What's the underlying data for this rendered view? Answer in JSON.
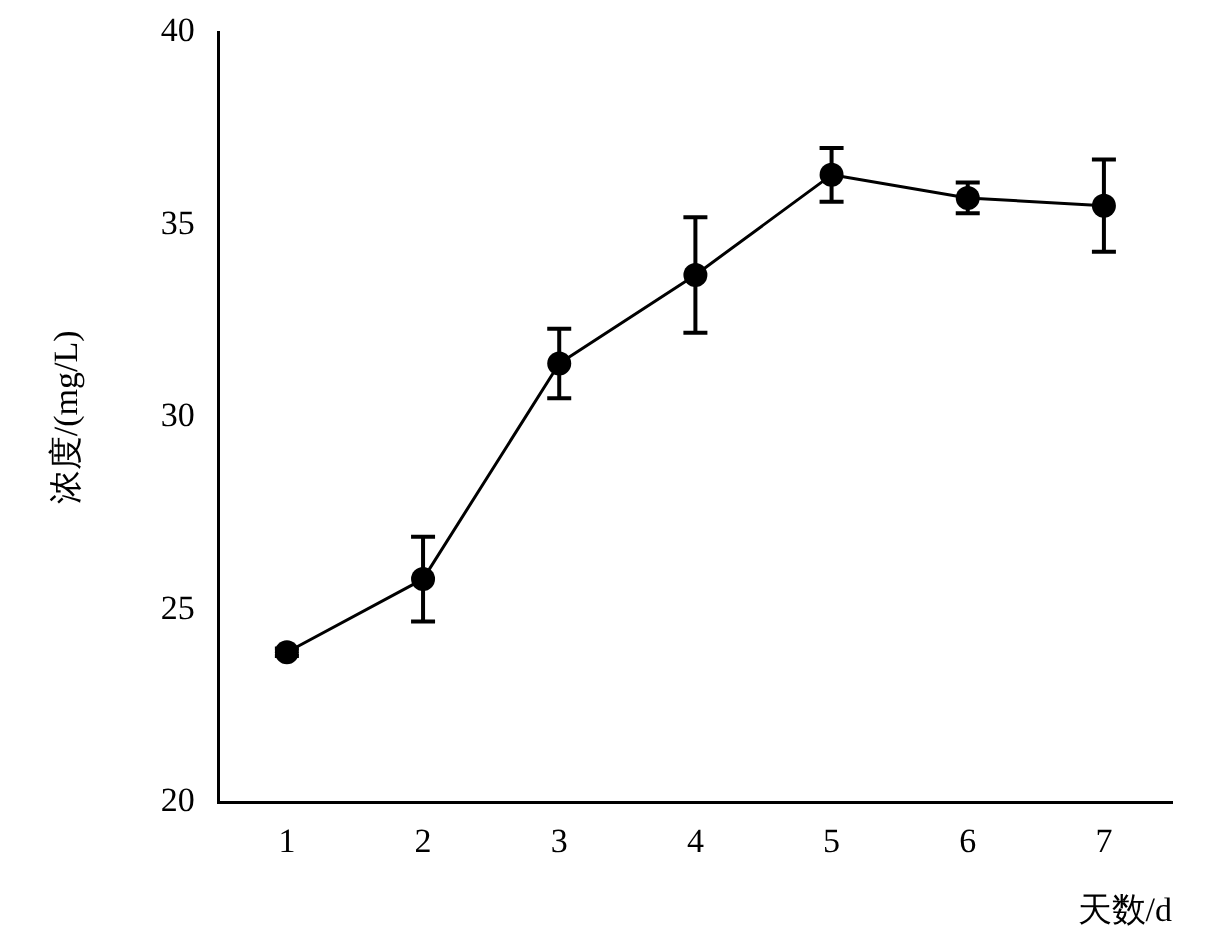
{
  "chart_data": {
    "type": "line",
    "xlabel": "天数/d",
    "ylabel": "浓度/(mg/L)",
    "categories": [
      "1",
      "2",
      "3",
      "4",
      "5",
      "6",
      "7"
    ],
    "series": [
      {
        "color": "#000000",
        "values": [
          23.9,
          25.8,
          31.4,
          33.7,
          36.3,
          35.7,
          35.5
        ],
        "errors": [
          0.1,
          1.1,
          0.9,
          1.5,
          0.7,
          0.4,
          1.2
        ]
      }
    ],
    "ylim": [
      20,
      40
    ],
    "yticks": [
      20,
      25,
      30,
      35,
      40
    ],
    "grid": false,
    "legend": false,
    "marker": "circle",
    "line_style": "solid"
  }
}
